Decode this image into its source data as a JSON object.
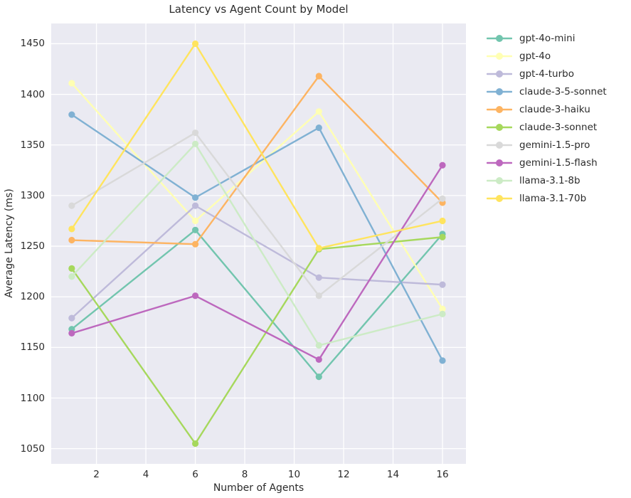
{
  "title": "Latency vs Agent Count by Model",
  "chart_data": {
    "type": "line",
    "title": "Latency vs Agent Count by Model",
    "xlabel": "Number of Agents",
    "ylabel": "Average Latency (ms)",
    "x": [
      1,
      6,
      11,
      16
    ],
    "xlim": [
      0.17,
      16.95
    ],
    "ylim": [
      1035,
      1470
    ],
    "x_ticks": [
      2,
      4,
      6,
      8,
      10,
      12,
      14,
      16
    ],
    "y_ticks": [
      1050,
      1100,
      1150,
      1200,
      1250,
      1300,
      1350,
      1400,
      1450
    ],
    "grid": true,
    "legend_position": "right",
    "plot_bg_color": "#eaeaf2",
    "grid_color": "#ffffff",
    "text_color": "#2b2b2b",
    "series": [
      {
        "name": "gpt-4o-mini",
        "color": "#72c5ae",
        "values": [
          1168,
          1266,
          1121,
          1262
        ]
      },
      {
        "name": "gpt-4o",
        "color": "#ffffb3",
        "values": [
          1411,
          1275,
          1383,
          1188
        ]
      },
      {
        "name": "gpt-4-turbo",
        "color": "#bebada",
        "values": [
          1179,
          1290,
          1219,
          1212
        ]
      },
      {
        "name": "claude-3-5-sonnet",
        "color": "#80b1d3",
        "values": [
          1380,
          1298,
          1367,
          1137
        ]
      },
      {
        "name": "claude-3-haiku",
        "color": "#fdb462",
        "values": [
          1256,
          1252,
          1418,
          1293
        ]
      },
      {
        "name": "claude-3-sonnet",
        "color": "#a6d85c",
        "values": [
          1228,
          1055,
          1247,
          1259
        ]
      },
      {
        "name": "gemini-1.5-pro",
        "color": "#d9d9d9",
        "values": [
          1290,
          1362,
          1201,
          1297
        ]
      },
      {
        "name": "gemini-1.5-flash",
        "color": "#bd68be",
        "values": [
          1164,
          1201,
          1138,
          1330
        ]
      },
      {
        "name": "llama-3.1-8b",
        "color": "#ccebc5",
        "values": [
          1220,
          1351,
          1152,
          1183
        ]
      },
      {
        "name": "llama-3.1-70b",
        "color": "#ffe45e",
        "values": [
          1267,
          1450,
          1248,
          1275
        ]
      }
    ]
  }
}
